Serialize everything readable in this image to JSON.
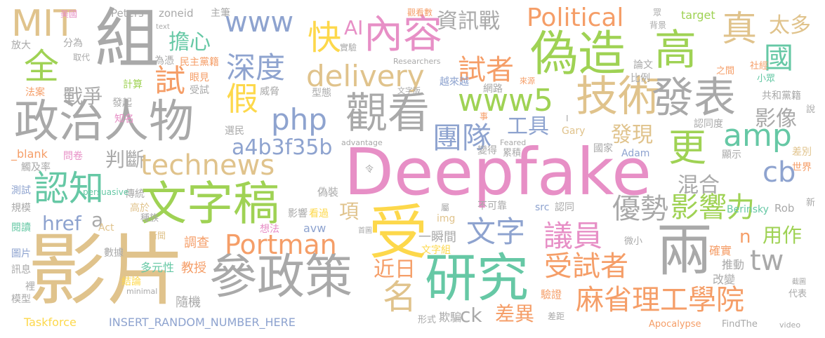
{
  "colors": {
    "gold": "#e0c38c",
    "pink": "#e78fc6",
    "green": "#9fd254",
    "gray": "#a9a9a9",
    "blue": "#8ea3cf",
    "orange": "#f59e68",
    "teal": "#66c8a5",
    "yellow": "#fdd84b"
  },
  "words": [
    {
      "text": "Deepfake",
      "color": "pink"
    },
    {
      "text": "影片",
      "color": "gold"
    },
    {
      "text": "政治人物",
      "color": "gray"
    },
    {
      "text": "組",
      "color": "gray"
    },
    {
      "text": "文字稿",
      "color": "green"
    },
    {
      "text": "受",
      "color": "yellow"
    },
    {
      "text": "參政策",
      "color": "gray"
    },
    {
      "text": "研究",
      "color": "teal"
    },
    {
      "text": "兩",
      "color": "gray"
    },
    {
      "text": "偽造",
      "color": "green"
    },
    {
      "text": "觀看",
      "color": "gray"
    },
    {
      "text": "技術",
      "color": "gold"
    },
    {
      "text": "內容",
      "color": "pink"
    },
    {
      "text": "發表",
      "color": "gray"
    },
    {
      "text": "高",
      "color": "green"
    },
    {
      "text": "真",
      "color": "gold"
    },
    {
      "text": "國",
      "color": "teal"
    },
    {
      "text": "MIT",
      "color": "gold"
    },
    {
      "text": "全",
      "color": "green"
    },
    {
      "text": "認知",
      "color": "teal"
    },
    {
      "text": "technews",
      "color": "gold"
    },
    {
      "text": "delivery",
      "color": "gold"
    },
    {
      "text": "Political",
      "color": "orange"
    },
    {
      "text": "深度",
      "color": "blue"
    },
    {
      "text": "www",
      "color": "blue"
    },
    {
      "text": "php",
      "color": "blue"
    },
    {
      "text": "www5",
      "color": "green"
    },
    {
      "text": "amp",
      "color": "teal"
    },
    {
      "text": "更",
      "color": "green"
    },
    {
      "text": "團隊",
      "color": "blue"
    },
    {
      "text": "優勢",
      "color": "gray"
    },
    {
      "text": "影響力",
      "color": "green"
    },
    {
      "text": "議員",
      "color": "pink"
    },
    {
      "text": "文字",
      "color": "blue"
    },
    {
      "text": "受試者",
      "color": "orange"
    },
    {
      "text": "麻省理工學院",
      "color": "orange"
    },
    {
      "text": "Portman",
      "color": "orange"
    },
    {
      "text": "試者",
      "color": "orange"
    },
    {
      "text": "名",
      "color": "gold"
    },
    {
      "text": "a4b3f35b",
      "color": "blue"
    },
    {
      "text": "假",
      "color": "yellow"
    },
    {
      "text": "cb",
      "color": "blue"
    },
    {
      "text": "tw",
      "color": "gray"
    },
    {
      "text": "快",
      "color": "yellow"
    },
    {
      "text": "資訊戰",
      "color": "gray"
    },
    {
      "text": "擔心",
      "color": "teal"
    },
    {
      "text": "戰爭",
      "color": "gray"
    },
    {
      "text": "試",
      "color": "orange"
    },
    {
      "text": "判斷",
      "color": "gray"
    },
    {
      "text": "近日",
      "color": "orange"
    },
    {
      "text": "差異",
      "color": "orange"
    },
    {
      "text": "ck",
      "color": "gray"
    },
    {
      "text": "href",
      "color": "blue"
    },
    {
      "text": "a",
      "color": "gray"
    },
    {
      "text": "項",
      "color": "gold"
    },
    {
      "text": "工具",
      "color": "blue"
    },
    {
      "text": "發現",
      "color": "gold"
    },
    {
      "text": "影像",
      "color": "gray"
    },
    {
      "text": "混合",
      "color": "gray"
    },
    {
      "text": "用作",
      "color": "green"
    },
    {
      "text": "太多",
      "color": "gold"
    },
    {
      "text": "n",
      "color": "orange"
    },
    {
      "text": "AI",
      "color": "pink"
    },
    {
      "text": "Peters",
      "color": "gray"
    },
    {
      "text": "zoneid",
      "color": "gray"
    },
    {
      "text": "主筆",
      "color": "gray"
    },
    {
      "text": "民主黨籍",
      "color": "orange"
    },
    {
      "text": "target",
      "color": "green"
    },
    {
      "text": "共和黨籍",
      "color": "gray"
    },
    {
      "text": "Taskforce",
      "color": "yellow"
    },
    {
      "text": "INSERT_RANDOM_NUMBER_HERE",
      "color": "blue"
    },
    {
      "text": "一瞬間",
      "color": "gray"
    },
    {
      "text": "調查",
      "color": "orange"
    },
    {
      "text": "教授",
      "color": "orange"
    },
    {
      "text": "多元性",
      "color": "teal"
    },
    {
      "text": "隨機",
      "color": "gray"
    },
    {
      "text": "數據",
      "color": "gray"
    },
    {
      "text": "結論",
      "color": "yellow"
    },
    {
      "text": "確實",
      "color": "orange"
    },
    {
      "text": "推動",
      "color": "gray"
    },
    {
      "text": "改變",
      "color": "gray"
    },
    {
      "text": "驗證",
      "color": "orange"
    },
    {
      "text": "欺騙",
      "color": "gray"
    },
    {
      "text": "形式",
      "color": "gray"
    },
    {
      "text": "Gary",
      "color": "gold"
    },
    {
      "text": "Adam",
      "color": "blue"
    },
    {
      "text": "Berinsky",
      "color": "teal"
    },
    {
      "text": "Rob",
      "color": "gray"
    },
    {
      "text": "世界",
      "color": "orange"
    },
    {
      "text": "差別",
      "color": "gold"
    },
    {
      "text": "顯示",
      "color": "gray"
    },
    {
      "text": "國家",
      "color": "gray"
    },
    {
      "text": "累積",
      "color": "gray"
    },
    {
      "text": "變得",
      "color": "gray"
    },
    {
      "text": "不可靠",
      "color": "gray"
    },
    {
      "text": "認同",
      "color": "gray"
    },
    {
      "text": "src",
      "color": "blue"
    },
    {
      "text": "img",
      "color": "gold"
    },
    {
      "text": "avw",
      "color": "blue"
    },
    {
      "text": "偽裝",
      "color": "gray"
    },
    {
      "text": "看過",
      "color": "yellow"
    },
    {
      "text": "影響",
      "color": "gray"
    },
    {
      "text": "威脅",
      "color": "gray"
    },
    {
      "text": "型態",
      "color": "gray"
    },
    {
      "text": "越來越",
      "color": "blue"
    },
    {
      "text": "網路",
      "color": "gray"
    },
    {
      "text": "比例",
      "color": "gray"
    },
    {
      "text": "論文",
      "color": "gray"
    },
    {
      "text": "社經",
      "color": "orange"
    },
    {
      "text": "小眾",
      "color": "teal"
    },
    {
      "text": "之間",
      "color": "orange"
    },
    {
      "text": "說",
      "color": "gray"
    },
    {
      "text": "認同度",
      "color": "gray"
    },
    {
      "text": "選民",
      "color": "gray"
    },
    {
      "text": "知名",
      "color": "pink"
    },
    {
      "text": "發起",
      "color": "gray"
    },
    {
      "text": "法案",
      "color": "orange"
    },
    {
      "text": "計算",
      "color": "green"
    },
    {
      "text": "眼見",
      "color": "orange"
    },
    {
      "text": "受試",
      "color": "gray"
    },
    {
      "text": "為憑",
      "color": "gray"
    },
    {
      "text": "分為",
      "color": "gray"
    },
    {
      "text": "取代",
      "color": "gray"
    },
    {
      "text": "放大",
      "color": "gray"
    },
    {
      "text": "美國",
      "color": "pink"
    },
    {
      "text": "傳統",
      "color": "gray"
    },
    {
      "text": "種族",
      "color": "gray"
    },
    {
      "text": "高於",
      "color": "gold"
    },
    {
      "text": "想法",
      "color": "pink"
    },
    {
      "text": "新聞",
      "color": "gold"
    },
    {
      "text": "Act",
      "color": "gold"
    },
    {
      "text": "persuasive",
      "color": "teal"
    },
    {
      "text": "觸及率",
      "color": "gray"
    },
    {
      "text": "問卷",
      "color": "pink"
    },
    {
      "text": "_blank",
      "color": "orange"
    },
    {
      "text": "測試",
      "color": "blue"
    },
    {
      "text": "規模",
      "color": "gray"
    },
    {
      "text": "閱讀",
      "color": "teal"
    },
    {
      "text": "圖片",
      "color": "blue"
    },
    {
      "text": "訊息",
      "color": "gray"
    },
    {
      "text": "裡",
      "color": "gray"
    },
    {
      "text": "模型",
      "color": "gray"
    },
    {
      "text": "minimal",
      "color": "gray"
    },
    {
      "text": "文字組",
      "color": "yellow"
    },
    {
      "text": "首圖",
      "color": "gray"
    },
    {
      "text": "屬",
      "color": "gray"
    },
    {
      "text": "微小",
      "color": "gray"
    },
    {
      "text": "Apocalypse",
      "color": "orange"
    },
    {
      "text": "FindThe",
      "color": "gray"
    },
    {
      "text": "video",
      "color": "gray"
    },
    {
      "text": "差距",
      "color": "gray"
    },
    {
      "text": "代表",
      "color": "gray"
    },
    {
      "text": "截圖",
      "color": "gray"
    },
    {
      "text": "新",
      "color": "gray"
    },
    {
      "text": "Feared",
      "color": "gray"
    },
    {
      "text": "advantage",
      "color": "gray"
    },
    {
      "text": "令",
      "color": "gray"
    },
    {
      "text": "事",
      "color": "orange"
    },
    {
      "text": "I",
      "color": "gray"
    },
    {
      "text": "文字版",
      "color": "gray"
    },
    {
      "text": "來源",
      "color": "orange"
    },
    {
      "text": "Researchers",
      "color": "gray"
    },
    {
      "text": "觀看數",
      "color": "orange"
    },
    {
      "text": "實驗",
      "color": "gray"
    },
    {
      "text": "背景",
      "color": "gray"
    },
    {
      "text": "眾",
      "color": "gray"
    },
    {
      "text": "text",
      "color": "gray"
    },
    {
      "text": "見",
      "color": "gray"
    }
  ]
}
